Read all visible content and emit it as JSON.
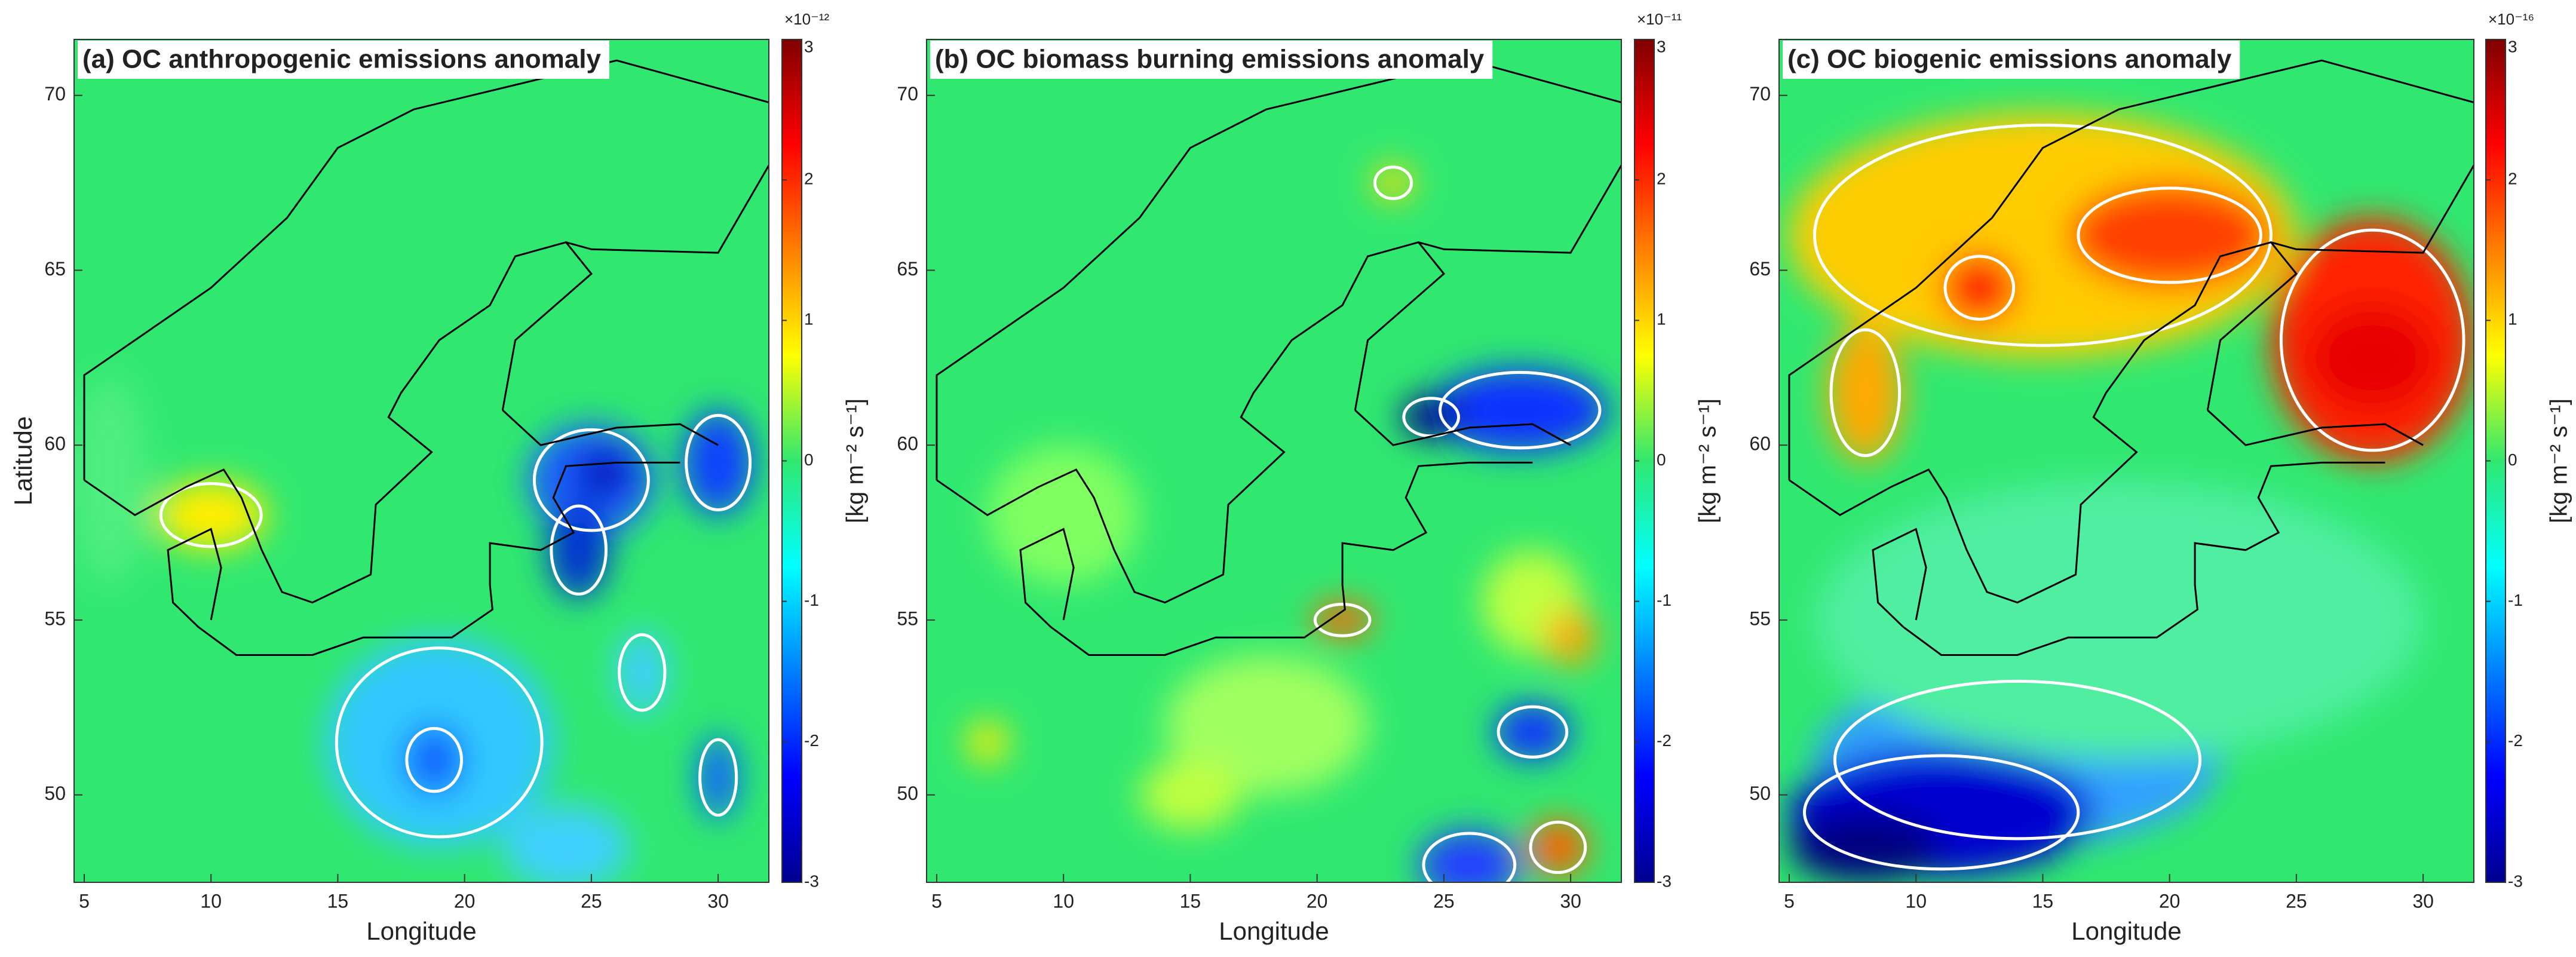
{
  "chart_data": [
    {
      "type": "map",
      "title": "(a) OC anthropogenic emissions anomaly",
      "x_label": "Longitude",
      "y_label": "Latitude",
      "xlim": [
        4.6,
        32
      ],
      "ylim": [
        47.5,
        71.6
      ],
      "xticks": [
        5,
        10,
        15,
        20,
        25,
        30
      ],
      "yticks": [
        50,
        55,
        60,
        65,
        70
      ],
      "colorbar": {
        "label": "[kg m⁻² s⁻¹]",
        "scale": "×10⁻¹²",
        "lim": [
          -3,
          3
        ],
        "ticks": [
          -3,
          -2,
          -1,
          0,
          1,
          2,
          3
        ]
      }
    },
    {
      "type": "map",
      "title": "(b) OC biomass burning emissions anomaly",
      "x_label": "Longitude",
      "xlim": [
        4.6,
        32
      ],
      "ylim": [
        47.5,
        71.6
      ],
      "xticks": [
        5,
        10,
        15,
        20,
        25,
        30
      ],
      "yticks": [
        50,
        55,
        60,
        65,
        70
      ],
      "colorbar": {
        "label": "[kg m⁻² s⁻¹]",
        "scale": "×10⁻¹¹",
        "lim": [
          -3,
          3
        ],
        "ticks": [
          -3,
          -2,
          -1,
          0,
          1,
          2,
          3
        ]
      }
    },
    {
      "type": "map",
      "title": "(c) OC biogenic emissions anomaly",
      "x_label": "Longitude",
      "xlim": [
        4.6,
        32
      ],
      "ylim": [
        47.5,
        71.6
      ],
      "xticks": [
        5,
        10,
        15,
        20,
        25,
        30
      ],
      "yticks": [
        50,
        55,
        60,
        65,
        70
      ],
      "colorbar": {
        "label": "[kg m⁻² s⁻¹]",
        "scale": "×10⁻¹⁶",
        "lim": [
          -3,
          3
        ],
        "ticks": [
          -3,
          -2,
          -1,
          0,
          1,
          2,
          3
        ]
      }
    }
  ]
}
